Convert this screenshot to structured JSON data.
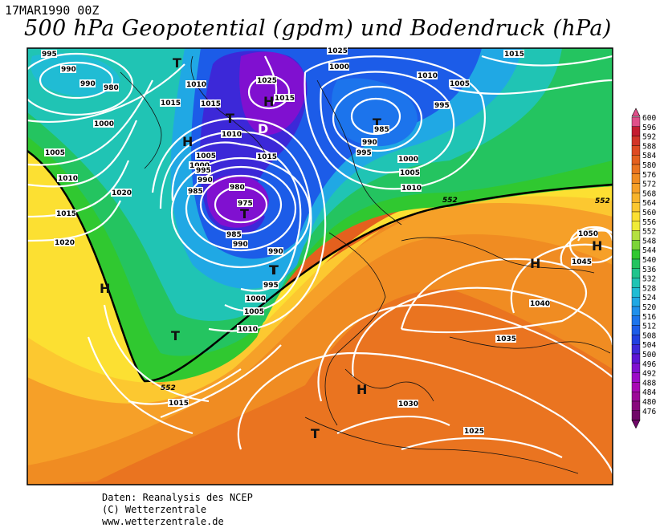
{
  "header": {
    "datetime": "17MAR1990 00Z",
    "title": "500 hPa Geopotential (gpdm) und Bodendruck (hPa)"
  },
  "legend": {
    "values": [
      "600",
      "596",
      "592",
      "588",
      "584",
      "580",
      "576",
      "572",
      "568",
      "564",
      "560",
      "556",
      "552",
      "548",
      "544",
      "540",
      "536",
      "532",
      "528",
      "524",
      "520",
      "516",
      "512",
      "508",
      "504",
      "500",
      "496",
      "492",
      "488",
      "484",
      "480",
      "476"
    ],
    "colors": [
      "#e0508a",
      "#c41c30",
      "#d23428",
      "#de4a22",
      "#e4601e",
      "#ea7420",
      "#f08c22",
      "#f6a028",
      "#f8b42c",
      "#fcc830",
      "#fce032",
      "#f0ec38",
      "#b4e040",
      "#7cd438",
      "#30c830",
      "#24c460",
      "#20c48c",
      "#20c4b4",
      "#20bcd4",
      "#20a8e4",
      "#2090ec",
      "#1c74ec",
      "#1c5ce8",
      "#2040e0",
      "#3c28d8",
      "#5c14d4",
      "#8010d0",
      "#9c0cc8",
      "#a808b4",
      "#9c0898",
      "#88087c",
      "#700868"
    ]
  },
  "map": {
    "symbols": [
      {
        "text": "T"
      },
      {
        "text": "T"
      },
      {
        "text": "H"
      },
      {
        "text": "T"
      },
      {
        "text": "D"
      },
      {
        "text": "T"
      },
      {
        "text": "T"
      },
      {
        "text": "T"
      },
      {
        "text": "H"
      },
      {
        "text": "T"
      },
      {
        "text": "H"
      },
      {
        "text": "T"
      },
      {
        "text": "H"
      },
      {
        "text": "H"
      },
      {
        "text": "H"
      }
    ],
    "isobar_labels": [
      "995",
      "990",
      "990",
      "980",
      "1015",
      "1000",
      "1010",
      "1015",
      "1005",
      "1010",
      "1020",
      "1015",
      "1020",
      "1025",
      "1010",
      "1015",
      "1005",
      "1000",
      "995",
      "990",
      "985",
      "980",
      "975",
      "985",
      "990",
      "990",
      "995",
      "1000",
      "1005",
      "1010",
      "1015",
      "1000",
      "1025",
      "1010",
      "1005",
      "995",
      "985",
      "990",
      "995",
      "1000",
      "1005",
      "1010",
      "1015",
      "1050",
      "1045",
      "1040",
      "1035",
      "1030",
      "1025",
      "1015"
    ],
    "contour_552_label": "552"
  },
  "footer": {
    "line1": "Daten: Reanalysis des NCEP",
    "line2": "(C) Wetterzentrale",
    "line3": "www.wetterzentrale.de"
  }
}
